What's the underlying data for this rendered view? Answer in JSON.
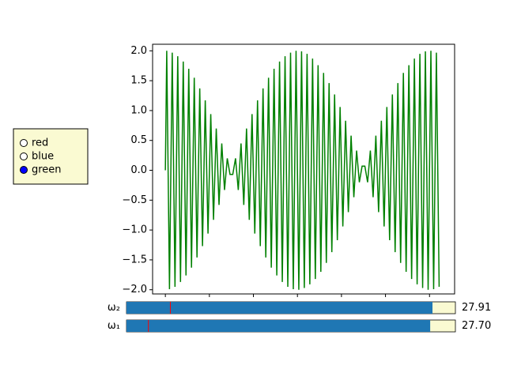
{
  "chart_data": {
    "type": "line",
    "color": "green",
    "x": [
      0,
      0.03125,
      0.09375,
      0.15625,
      0.21875,
      0.28125,
      0.34375,
      0.40625,
      0.46875,
      0.53125,
      0.59375,
      0.65625,
      0.71875,
      0.78125,
      0.84375,
      0.90625,
      0.96875,
      1.03125,
      1.09375,
      1.15625,
      1.21875,
      1.28125,
      1.34375,
      1.40625,
      1.46875,
      1.53125,
      1.59375,
      1.65625,
      1.71875,
      1.78125,
      1.84375,
      1.90625,
      1.96875,
      2.03125,
      2.09375,
      2.15625,
      2.21875,
      2.28125,
      2.34375,
      2.40625,
      2.46875,
      2.53125,
      2.59375,
      2.65625,
      2.71875,
      2.78125,
      2.84375,
      2.90625,
      2.96875,
      3.03125,
      3.09375,
      3.15625,
      3.21875,
      3.28125,
      3.34375,
      3.40625,
      3.46875,
      3.53125,
      3.59375,
      3.65625,
      3.71875,
      3.78125,
      3.84375,
      3.90625,
      3.96875,
      4.03125,
      4.09375,
      4.15625,
      4.21875,
      4.28125,
      4.34375,
      4.40625,
      4.46875,
      4.53125,
      4.59375,
      4.65625,
      4.71875,
      4.78125,
      4.84375,
      4.90625,
      4.96875,
      5.03125,
      5.09375,
      5.15625,
      5.21875,
      5.28125,
      5.34375,
      5.40625,
      5.46875,
      5.53125,
      5.59375,
      5.65625,
      5.71875,
      5.78125,
      5.84375,
      5.90625,
      5.96875,
      6.03125,
      6.09375,
      6.15625,
      6.21875
    ],
    "values": [
      0,
      2.0,
      -1.99,
      1.97,
      -1.95,
      1.91,
      -1.87,
      1.82,
      -1.76,
      1.7,
      -1.63,
      1.55,
      -1.46,
      1.37,
      -1.27,
      1.17,
      -1.06,
      0.94,
      -0.83,
      0.7,
      -0.58,
      0.45,
      -0.33,
      0.2,
      -0.07,
      -0.07,
      0.2,
      -0.33,
      0.45,
      -0.58,
      0.7,
      -0.83,
      0.94,
      -1.06,
      1.17,
      -1.27,
      1.37,
      -1.46,
      1.55,
      -1.63,
      1.7,
      -1.76,
      1.82,
      -1.87,
      1.91,
      -1.95,
      1.97,
      -1.99,
      2.0,
      -2.0,
      1.99,
      -1.97,
      1.95,
      -1.91,
      1.87,
      -1.82,
      1.76,
      -1.7,
      1.63,
      -1.55,
      1.46,
      -1.37,
      1.27,
      -1.17,
      1.06,
      -0.94,
      0.83,
      -0.7,
      0.58,
      -0.45,
      0.33,
      -0.2,
      0.07,
      0.07,
      -0.2,
      0.33,
      -0.45,
      0.58,
      -0.7,
      0.83,
      -0.94,
      1.06,
      -1.17,
      1.27,
      -1.37,
      1.46,
      -1.55,
      1.63,
      -1.7,
      1.76,
      -1.82,
      1.87,
      -1.91,
      1.95,
      -1.97,
      1.99,
      -2.0,
      2.0,
      -1.99,
      1.97,
      -1.95
    ],
    "xlim": [
      -0.29,
      6.57
    ],
    "xticks": [
      0,
      1,
      2,
      3,
      4,
      5,
      6
    ],
    "ylim": [
      -2.07,
      2.11
    ],
    "yticks": [
      {
        "value": -2.0,
        "label": "−2.0"
      },
      {
        "value": -1.5,
        "label": "−1.5"
      },
      {
        "value": -1.0,
        "label": "−1.0"
      },
      {
        "value": -0.5,
        "label": "−0.5"
      },
      {
        "value": 0.0,
        "label": "0.0"
      },
      0.5,
      {
        "value": 1.0,
        "label": "1.0"
      },
      1.5,
      {
        "value": 2.0,
        "label": "2.0"
      }
    ]
  },
  "radio": {
    "labels": [
      "red",
      "blue",
      "green"
    ],
    "active": 2
  },
  "sliders": [
    {
      "label": "ω₂",
      "value": 27.91,
      "init": 4,
      "range": [
        0,
        30
      ]
    },
    {
      "label": "ω₁",
      "value": {
        "value": 27.7,
        "label": "27.70"
      },
      "init": 2,
      "range": [
        0,
        30
      ]
    }
  ]
}
